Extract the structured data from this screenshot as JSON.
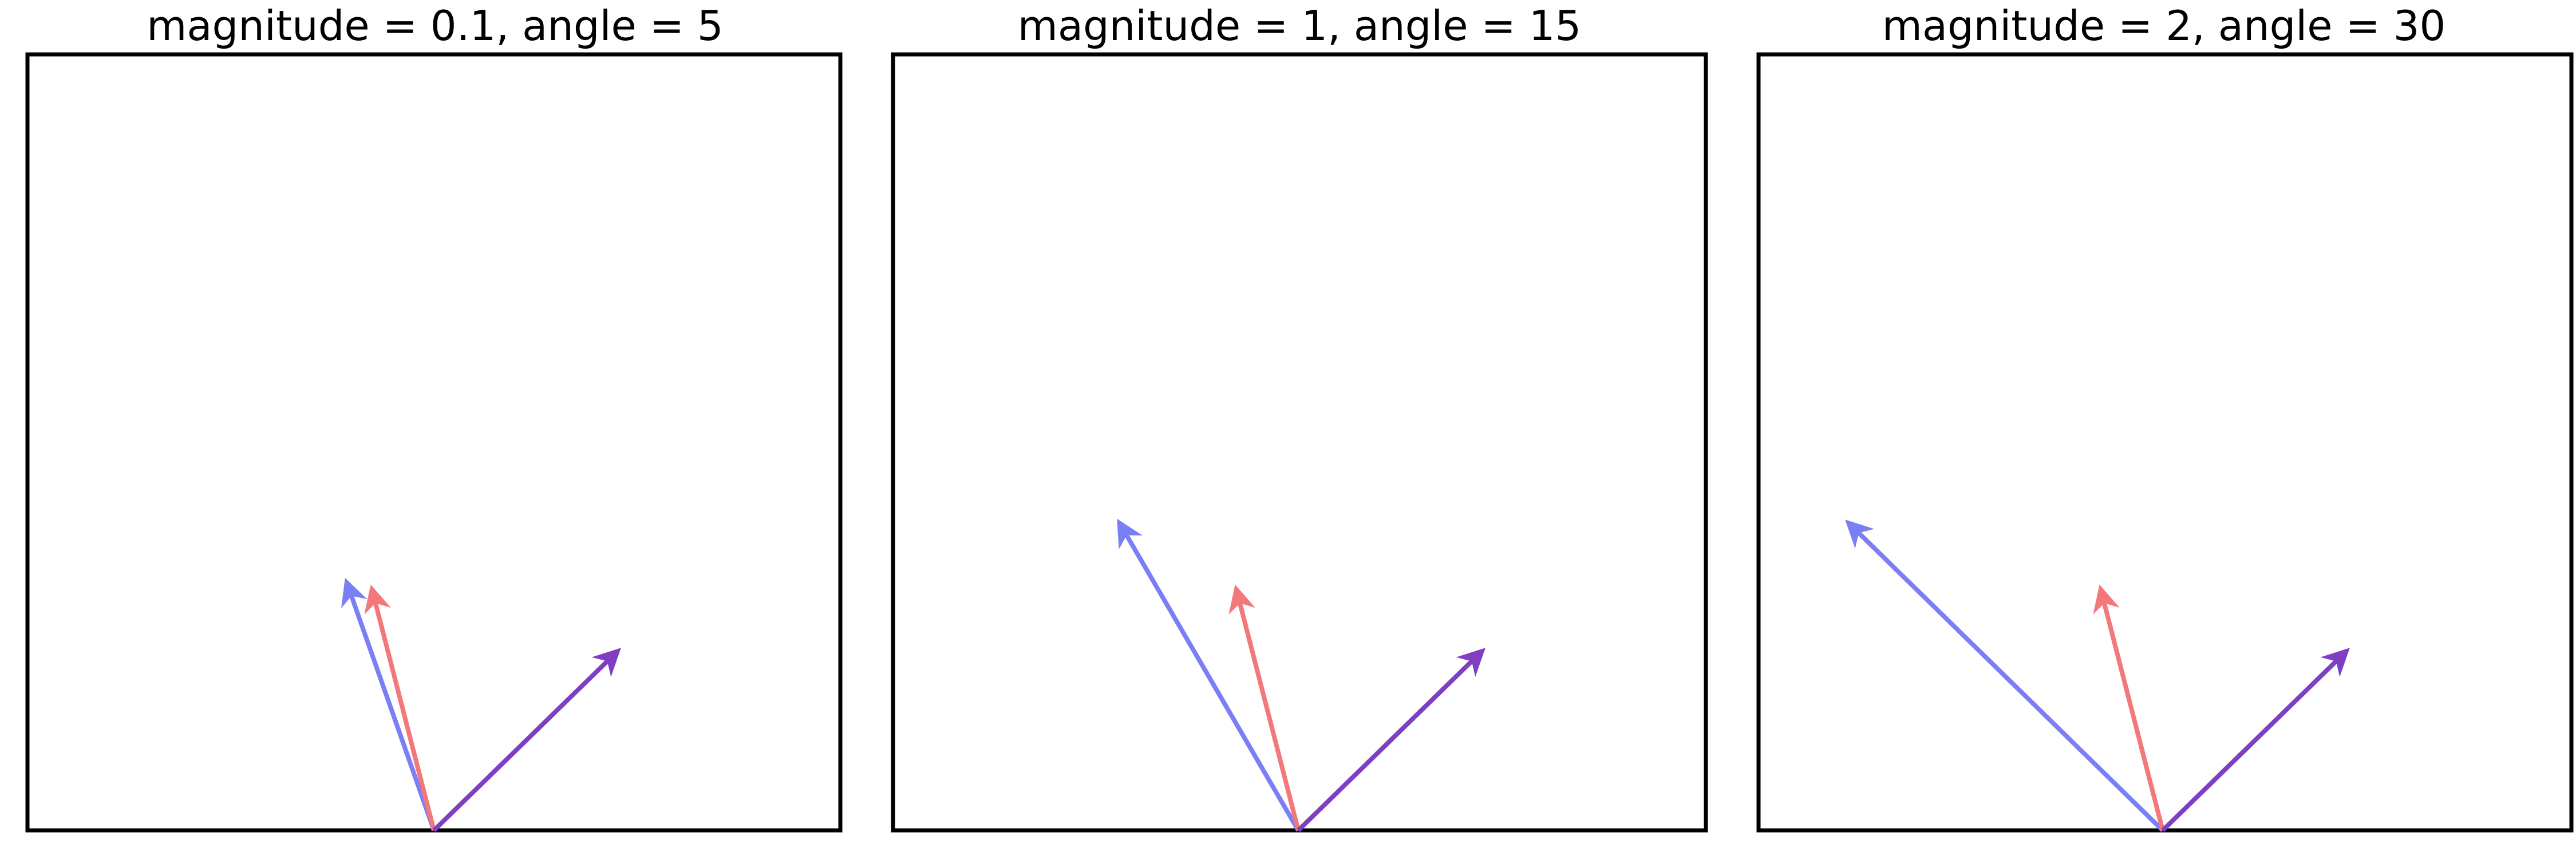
{
  "colors": {
    "background": "#ffffff",
    "frame": "#000000",
    "arrow_blue": "#7b7ff5",
    "arrow_red": "#f2787c",
    "arrow_purple": "#7e3fc4"
  },
  "panels": [
    {
      "title": "magnitude = 0.1, angle = 5",
      "arrows": [
        {
          "color_key": "arrow_blue",
          "dx": -0.38,
          "dy": 1.08
        },
        {
          "color_key": "arrow_red",
          "dx": -0.27,
          "dy": 1.05
        },
        {
          "color_key": "arrow_purple",
          "dx": 0.8,
          "dy": 0.78
        }
      ]
    },
    {
      "title": "magnitude = 1, angle = 15",
      "arrows": [
        {
          "color_key": "arrow_blue",
          "dx": -0.78,
          "dy": 1.34
        },
        {
          "color_key": "arrow_red",
          "dx": -0.27,
          "dy": 1.05
        },
        {
          "color_key": "arrow_purple",
          "dx": 0.8,
          "dy": 0.78
        }
      ]
    },
    {
      "title": "magnitude = 2, angle = 30",
      "arrows": [
        {
          "color_key": "arrow_blue",
          "dx": -1.37,
          "dy": 1.34
        },
        {
          "color_key": "arrow_red",
          "dx": -0.27,
          "dy": 1.05
        },
        {
          "color_key": "arrow_purple",
          "dx": 0.8,
          "dy": 0.78
        }
      ]
    }
  ]
}
